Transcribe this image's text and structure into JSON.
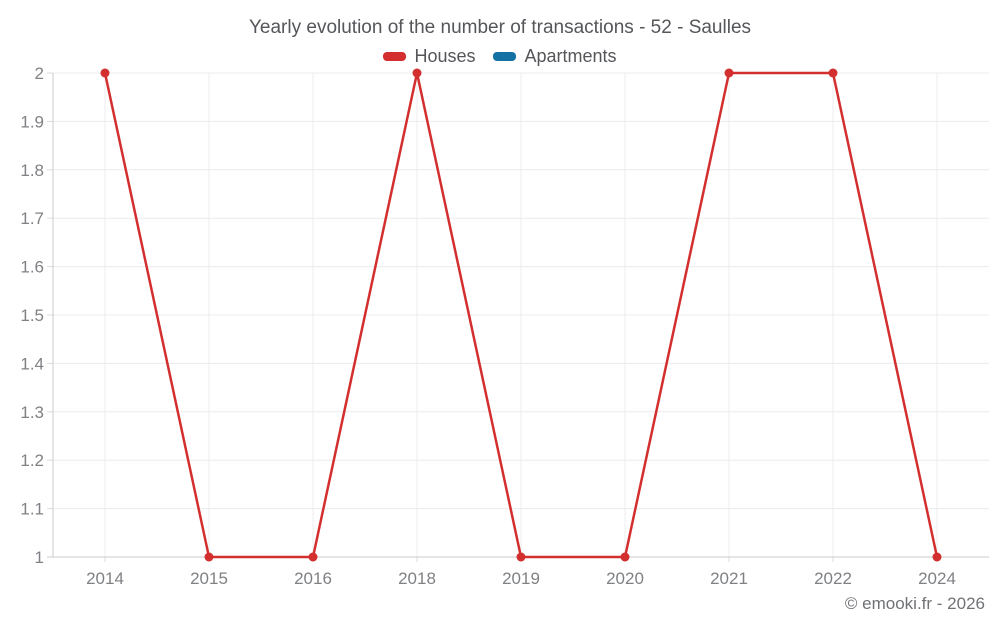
{
  "title": "Yearly evolution of the number of transactions - 52 - Saulles",
  "legend": [
    {
      "label": "Houses",
      "color": "#d32f2f"
    },
    {
      "label": "Apartments",
      "color": "#1471a3"
    }
  ],
  "footer": "© emooki.fr - 2026",
  "colors": {
    "houses": "#d32f2f",
    "apartments": "#1471a3",
    "grid": "#ececec",
    "axis": "#c9cbcd",
    "tick": "#dddddd",
    "tick_label": "#7f8184"
  },
  "chart_data": {
    "type": "line",
    "title": "Yearly evolution of the number of transactions - 52 - Saulles",
    "categories": [
      "2014",
      "2015",
      "2016",
      "2018",
      "2019",
      "2020",
      "2021",
      "2022",
      "2024"
    ],
    "series": [
      {
        "name": "Houses",
        "color": "#d32f2f",
        "values": [
          2,
          1,
          1,
          2,
          1,
          1,
          2,
          2,
          1
        ]
      },
      {
        "name": "Apartments",
        "color": "#1471a3",
        "values": []
      }
    ],
    "xlabel": "",
    "ylabel": "",
    "ylim": [
      1,
      2
    ],
    "y_tick_labels": [
      "1",
      "1.1",
      "1.2",
      "1.3",
      "1.4",
      "1.5",
      "1.6",
      "1.7",
      "1.8",
      "1.9",
      "2"
    ],
    "grid": true,
    "legend_position": "top"
  }
}
